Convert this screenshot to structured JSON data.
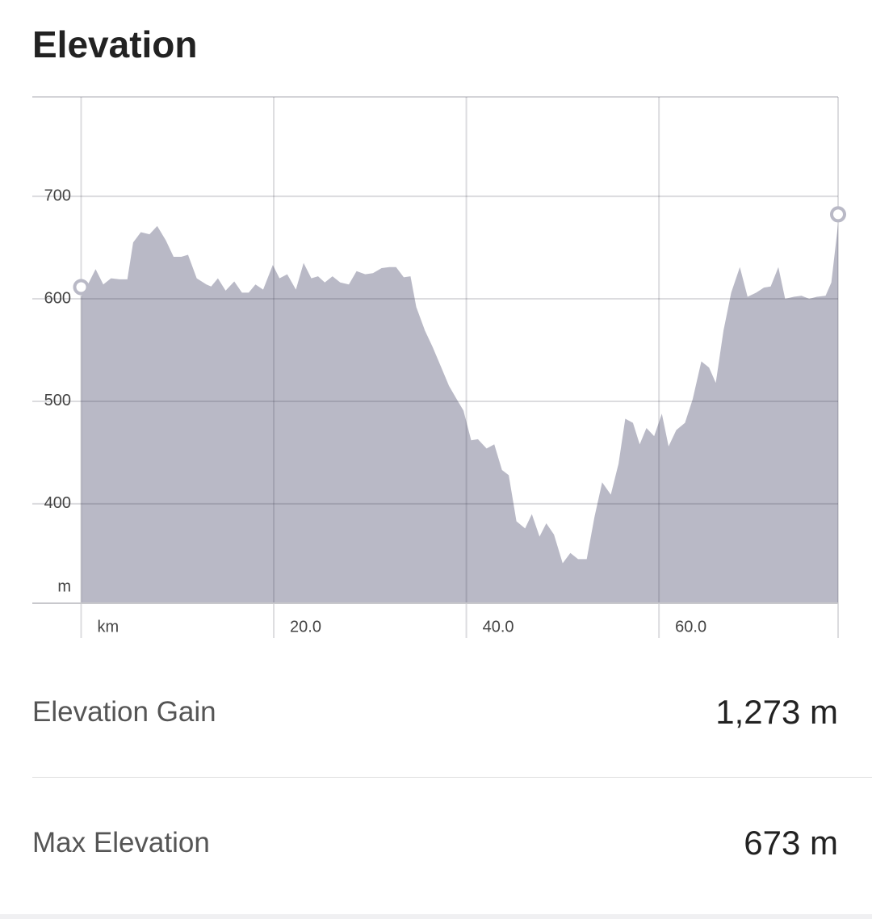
{
  "title": "Elevation",
  "chart_data": {
    "type": "area",
    "y_axis_unit": "m",
    "x": [
      0,
      0.6,
      1.5,
      2.3,
      3.1,
      4.0,
      4.8,
      5.4,
      6.2,
      7.1,
      7.9,
      8.8,
      9.6,
      10.4,
      11.1,
      12.0,
      13.0,
      13.5,
      14.2,
      15.0,
      15.9,
      16.7,
      17.4,
      18.1,
      18.9,
      19.9,
      20.6,
      21.4,
      22.3,
      23.1,
      23.9,
      24.6,
      25.3,
      26.1,
      26.9,
      27.8,
      28.6,
      29.5,
      30.3,
      31.2,
      32.0,
      32.7,
      33.5,
      34.2,
      34.8,
      35.7,
      36.5,
      37.4,
      38.2,
      39.0,
      39.7,
      40.5,
      41.2,
      42.1,
      42.9,
      43.7,
      44.4,
      45.2,
      46.1,
      46.8,
      47.6,
      48.3,
      49.1,
      50.0,
      50.8,
      51.6,
      52.5,
      53.3,
      54.1,
      55.0,
      55.8,
      56.5,
      57.3,
      58.0,
      58.7,
      59.5,
      60.3,
      61.0,
      61.8,
      62.7,
      63.5,
      64.4,
      65.2,
      65.9,
      66.7,
      67.5,
      68.4,
      69.2,
      70.1,
      70.9,
      71.6,
      72.4,
      73.1,
      74.0,
      74.8,
      75.6,
      76.4,
      77.3,
      77.9,
      78.6
    ],
    "series": [
      {
        "color": "#b9b9c6",
        "values": [
          602,
          612,
          629,
          614,
          620,
          619,
          619,
          655,
          665,
          663,
          671,
          657,
          641,
          641,
          643,
          620,
          614,
          612,
          620,
          608,
          617,
          606,
          606,
          614,
          609,
          633,
          620,
          624,
          609,
          635,
          620,
          622,
          616,
          622,
          616,
          614,
          627,
          624,
          625,
          630,
          631,
          631,
          621,
          622,
          592,
          569,
          553,
          533,
          515,
          502,
          491,
          462,
          463,
          454,
          458,
          433,
          428,
          383,
          376,
          390,
          368,
          381,
          370,
          342,
          352,
          346,
          346,
          387,
          421,
          409,
          439,
          483,
          479,
          458,
          474,
          466,
          488,
          456,
          472,
          479,
          502,
          539,
          533,
          518,
          569,
          606,
          631,
          602,
          606,
          611,
          612,
          631,
          600,
          602,
          603,
          600,
          602,
          603,
          616,
          673
        ]
      }
    ],
    "xlim": [
      0,
      78.6
    ],
    "ylim": [
      303,
      797
    ],
    "xticks": [
      {
        "value": 0,
        "label": "km"
      },
      {
        "value": 20,
        "label": "20.0"
      },
      {
        "value": 40,
        "label": "40.0"
      },
      {
        "value": 60,
        "label": "60.0"
      }
    ],
    "yticks": [
      400,
      500,
      600,
      700
    ],
    "grid": true
  },
  "stats": [
    {
      "label": "Elevation Gain",
      "value": "1,273 m"
    },
    {
      "label": "Max Elevation",
      "value": "673 m"
    }
  ]
}
